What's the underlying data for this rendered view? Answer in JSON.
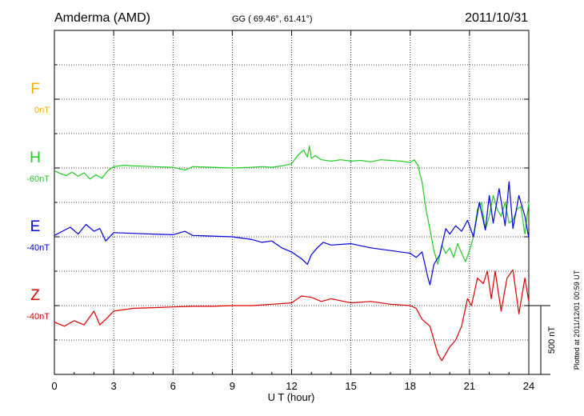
{
  "header": {
    "station": "Amderma (AMD)",
    "coords": "GG ( 69.46°,  61.41°)",
    "date": "2011/10/31"
  },
  "chart_data": {
    "type": "line",
    "xlabel": "U T (hour)",
    "xlim": [
      0,
      24
    ],
    "xticks": [
      "0",
      "3",
      "6",
      "9",
      "12",
      "15",
      "18",
      "21",
      "24"
    ],
    "grid": true,
    "scale_label": "500 nT",
    "scale_nT": 500,
    "side_note": "Plotted at 2011/12/01 00:59 UT",
    "panels": [
      {
        "label": "F",
        "baseline": "0nT",
        "color": "#f5a800",
        "slot": 0
      },
      {
        "label": "H",
        "baseline": "-60nT",
        "color": "#22cc22",
        "slot": 1
      },
      {
        "label": "E",
        "baseline": "-40nT",
        "color": "#0000dd",
        "slot": 2
      },
      {
        "label": "Z",
        "baseline": "-40nT",
        "color": "#dd0000",
        "slot": 3
      }
    ],
    "series": [
      {
        "name": "H",
        "color": "#22cc22",
        "x": [
          0,
          0.3,
          0.6,
          0.9,
          1.2,
          1.5,
          1.8,
          2.1,
          2.4,
          2.7,
          3,
          3.5,
          4,
          5,
          6,
          6.6,
          7,
          8,
          9,
          10,
          10.5,
          11,
          11.5,
          12,
          12.3,
          12.6,
          12.8,
          12.9,
          13,
          13.2,
          13.5,
          14,
          14.5,
          15,
          15.5,
          16,
          16.5,
          17,
          17.5,
          18,
          18.2,
          18.4,
          18.5,
          18.6,
          18.8,
          19,
          19.2,
          19.4,
          19.6,
          19.8,
          20,
          20.2,
          20.4,
          20.6,
          20.8,
          21,
          21.2,
          21.4,
          21.6,
          21.8,
          22,
          22.2,
          22.4,
          22.6,
          22.8,
          23,
          23.2,
          23.4,
          23.6,
          23.8,
          24
        ],
        "y": [
          -20,
          -40,
          -55,
          -30,
          -60,
          -35,
          -80,
          -50,
          -75,
          -20,
          10,
          20,
          15,
          10,
          5,
          -15,
          10,
          5,
          0,
          5,
          10,
          5,
          15,
          30,
          90,
          130,
          80,
          160,
          70,
          90,
          60,
          50,
          60,
          50,
          55,
          45,
          60,
          55,
          50,
          40,
          60,
          20,
          -50,
          -100,
          -300,
          -450,
          -600,
          -700,
          -560,
          -620,
          -580,
          -650,
          -550,
          -620,
          -680,
          -600,
          -500,
          -300,
          -250,
          -450,
          -350,
          -200,
          -300,
          -350,
          -250,
          -400,
          -380,
          -300,
          -280,
          -480,
          -250
        ]
      },
      {
        "name": "E",
        "color": "#0000dd",
        "x": [
          0,
          0.4,
          0.8,
          1.2,
          1.6,
          2,
          2.3,
          2.6,
          3,
          4,
          5,
          6,
          6.6,
          7,
          8,
          9,
          10,
          10.5,
          11,
          11.5,
          12,
          12.5,
          12.8,
          13,
          13.3,
          13.6,
          14,
          15,
          16,
          17,
          18,
          18.3,
          18.6,
          18.9,
          19,
          19.2,
          19.5,
          19.8,
          20,
          20.3,
          20.6,
          20.9,
          21.2,
          21.5,
          21.8,
          22,
          22.2,
          22.5,
          22.8,
          23,
          23.2,
          23.5,
          23.8,
          24
        ],
        "y": [
          10,
          40,
          70,
          20,
          90,
          40,
          60,
          -30,
          30,
          25,
          20,
          15,
          40,
          10,
          5,
          0,
          -20,
          -40,
          -30,
          -80,
          -110,
          -160,
          -200,
          -130,
          -80,
          -40,
          -60,
          -50,
          -80,
          -100,
          -120,
          -150,
          -110,
          -300,
          -350,
          -200,
          -130,
          60,
          20,
          80,
          40,
          120,
          0,
          250,
          50,
          300,
          100,
          350,
          80,
          400,
          60,
          300,
          150,
          -10
        ]
      },
      {
        "name": "Z",
        "color": "#dd0000",
        "x": [
          0,
          0.5,
          1,
          1.5,
          2,
          2.3,
          2.6,
          3,
          4,
          5,
          6,
          7,
          8,
          9,
          10,
          11,
          12,
          12.5,
          13,
          13.5,
          14,
          15,
          16,
          17,
          18,
          18.3,
          18.6,
          19,
          19.2,
          19.4,
          19.6,
          19.8,
          20,
          20.3,
          20.6,
          20.9,
          21.1,
          21.4,
          21.7,
          21.9,
          22.1,
          22.3,
          22.6,
          22.9,
          23.2,
          23.5,
          23.8,
          24
        ],
        "y": [
          -120,
          -150,
          -110,
          -140,
          -40,
          -140,
          -100,
          -40,
          -20,
          -15,
          -10,
          -5,
          -5,
          0,
          0,
          10,
          20,
          70,
          60,
          30,
          50,
          20,
          30,
          10,
          0,
          -20,
          -100,
          -150,
          -250,
          -350,
          -400,
          -350,
          -300,
          -250,
          -150,
          50,
          0,
          200,
          160,
          250,
          50,
          250,
          -40,
          200,
          260,
          -60,
          200,
          30
        ]
      }
    ]
  }
}
